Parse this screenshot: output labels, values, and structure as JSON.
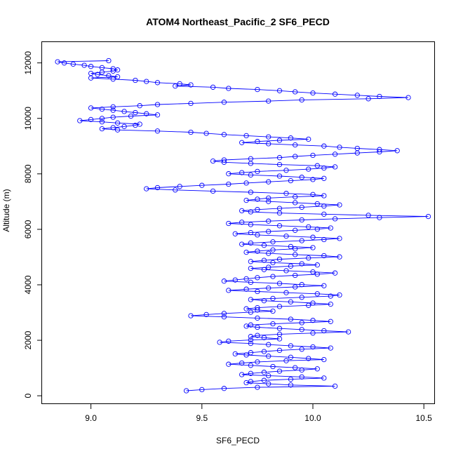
{
  "chart_data": {
    "type": "scatter",
    "title": "ATOM4 Northeast_Pacific_2 SF6_PECD",
    "xlabel": "SF6_PECD",
    "ylabel": "Altitude (m)",
    "xlim": [
      8.78,
      10.55
    ],
    "ylim": [
      -300,
      12750
    ],
    "x_ticks": [
      9.0,
      9.5,
      10.0,
      10.5
    ],
    "x_tick_labels": [
      "9.0",
      "9.5",
      "10.0",
      "10.5"
    ],
    "y_ticks": [
      0,
      2000,
      4000,
      6000,
      8000,
      10000,
      12000
    ],
    "y_tick_labels": [
      "0",
      "2000",
      "4000",
      "6000",
      "8000",
      "10000",
      "12000"
    ],
    "grid": false,
    "legend": "none",
    "series_color": "#0000ff",
    "marker": "open-circle",
    "connected": true,
    "series": [
      {
        "x": [
          9.08,
          8.85,
          8.88,
          8.92,
          8.97,
          9.0,
          9.05,
          9.1,
          9.12,
          9.1,
          9.05,
          9.0,
          9.03,
          9.08,
          9.12,
          9.0,
          9.1,
          9.2,
          9.25,
          9.3,
          9.4,
          9.45,
          9.38,
          9.55,
          9.62,
          9.75,
          9.85,
          9.92,
          10.0,
          10.1,
          10.2,
          10.3,
          10.43,
          10.25,
          9.95,
          9.8,
          9.6,
          9.45,
          9.3,
          9.22,
          9.1,
          9.0,
          9.05,
          9.1,
          9.15,
          9.2,
          9.25,
          9.3,
          9.18,
          9.1,
          9.05,
          9.0,
          8.95,
          9.05,
          9.12,
          9.22,
          9.2,
          9.15,
          9.1,
          9.05,
          9.12,
          9.3,
          9.45,
          9.52,
          9.6,
          9.7,
          9.8,
          9.9,
          9.98,
          9.85,
          9.75,
          9.68,
          9.8,
          9.92,
          10.05,
          10.12,
          10.2,
          10.3,
          10.38,
          10.3,
          10.2,
          10.1,
          10.0,
          9.92,
          9.85,
          9.72,
          9.6,
          9.55,
          9.6,
          9.72,
          9.85,
          10.02,
          10.1,
          10.05,
          9.98,
          9.88,
          9.75,
          9.68,
          9.62,
          9.72,
          9.85,
          9.95,
          10.05,
          10.0,
          9.9,
          9.8,
          9.7,
          9.62,
          9.5,
          9.4,
          9.3,
          9.25,
          9.38,
          9.55,
          9.72,
          9.88,
          10.0,
          10.05,
          9.92,
          9.8,
          9.75,
          9.7,
          9.8,
          9.92,
          10.02,
          10.12,
          10.05,
          9.95,
          9.85,
          9.75,
          9.68,
          9.72,
          9.85,
          10.05,
          10.25,
          10.52,
          10.3,
          10.1,
          9.95,
          9.8,
          9.68,
          9.62,
          9.72,
          9.85,
          9.98,
          10.08,
          10.02,
          9.92,
          9.8,
          9.72,
          9.65,
          9.75,
          9.88,
          10.0,
          10.12,
          10.05,
          9.95,
          9.82,
          9.72,
          9.68,
          9.78,
          9.9,
          10.0,
          9.92,
          9.82,
          9.75,
          9.7,
          9.8,
          9.92,
          10.05,
          10.12,
          9.98,
          9.85,
          9.78,
          9.72,
          9.82,
          9.95,
          10.02,
          9.9,
          9.8,
          9.72,
          9.78,
          9.88,
          10.0,
          10.1,
          10.02,
          9.92,
          9.82,
          9.75,
          9.7,
          9.65,
          9.6,
          9.72,
          9.85,
          9.95,
          10.05,
          9.92,
          9.8,
          9.7,
          9.62,
          9.75,
          9.88,
          10.02,
          10.12,
          10.08,
          9.95,
          9.82,
          9.72,
          9.78,
          9.9,
          10.0,
          10.08,
          9.98,
          9.85,
          9.75,
          9.7,
          9.75,
          9.82,
          9.72,
          9.6,
          9.52,
          9.45,
          9.6,
          9.75,
          9.9,
          10.0,
          10.08,
          9.95,
          9.82,
          9.72,
          9.7,
          9.75,
          9.85,
          9.95,
          10.05,
          10.16,
          10.0,
          9.85,
          9.75,
          9.72,
          9.78,
          9.85,
          9.72,
          9.62,
          9.58,
          9.72,
          9.8,
          9.9,
          10.0,
          10.08,
          9.95,
          9.85,
          9.78,
          9.72,
          9.65,
          9.7,
          9.8,
          9.9,
          9.98,
          10.05,
          9.88,
          9.75,
          9.68,
          9.62,
          9.72,
          9.82,
          9.92,
          10.02,
          9.95,
          9.85,
          9.78,
          9.72,
          9.68,
          9.8,
          9.95,
          10.05,
          9.9,
          9.78,
          9.72,
          9.7,
          9.8,
          9.9,
          10.1,
          9.75,
          9.6,
          9.5,
          9.43
        ]
      }
    ]
  }
}
